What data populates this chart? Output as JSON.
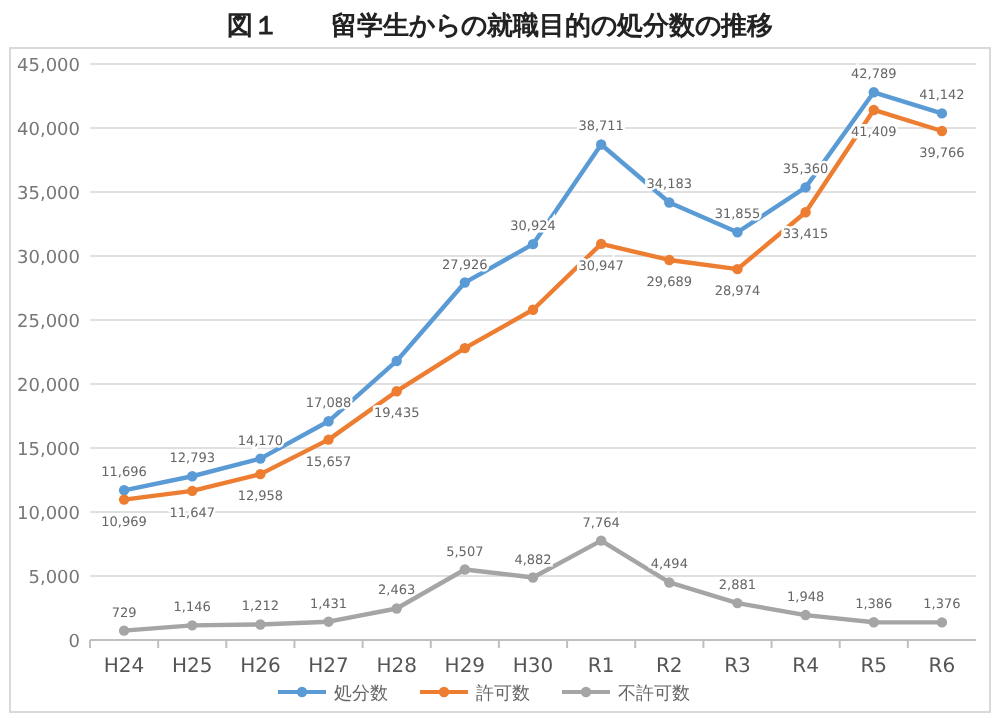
{
  "chart_data": {
    "type": "line",
    "title": "図１　　留学生からの就職目的の処分数の推移",
    "categories": [
      "H24",
      "H25",
      "H26",
      "H27",
      "H28",
      "H29",
      "H30",
      "R1",
      "R2",
      "R3",
      "R4",
      "R5",
      "R6"
    ],
    "series": [
      {
        "name": "処分数",
        "color": "#5b9bd5",
        "values": [
          11696,
          12793,
          14170,
          17088,
          21800,
          27926,
          30924,
          38711,
          34183,
          31855,
          35360,
          42789,
          41142
        ],
        "value_labels": [
          "11,696",
          "12,793",
          "14,170",
          "17,088",
          null,
          "27,926",
          "30,924",
          "38,711",
          "34,183",
          "31,855",
          "35,360",
          "42,789",
          "41,142"
        ]
      },
      {
        "name": "許可数",
        "color": "#ed7d31",
        "values": [
          10969,
          11647,
          12958,
          15657,
          19435,
          22800,
          25800,
          30947,
          29689,
          28974,
          33415,
          41409,
          39766
        ],
        "value_labels": [
          "10,969",
          "11,647",
          "12,958",
          "15,657",
          "19,435",
          null,
          null,
          "30,947",
          "29,689",
          "28,974",
          "33,415",
          "41,409",
          "39,766"
        ]
      },
      {
        "name": "不許可数",
        "color": "#a5a5a5",
        "values": [
          729,
          1146,
          1212,
          1431,
          2463,
          5507,
          4882,
          7764,
          4494,
          2881,
          1948,
          1386,
          1376
        ],
        "value_labels": [
          "729",
          "1,146",
          "1,212",
          "1,431",
          "2,463",
          "5,507",
          "4,882",
          "7,764",
          "4,494",
          "2,881",
          "1,948",
          "1,386",
          "1,376"
        ]
      }
    ],
    "ylim": [
      0,
      45000
    ],
    "yticks": [
      0,
      {
        "value": 5000,
        "label": "5,000"
      },
      {
        "value": 10000,
        "label": "10,000"
      },
      {
        "value": 15000,
        "label": "15,000"
      },
      {
        "value": 20000,
        "label": "20,000"
      },
      {
        "value": 25000,
        "label": "25,000"
      },
      {
        "value": 30000,
        "label": "30,000"
      },
      {
        "value": 35000,
        "label": "35,000"
      },
      {
        "value": 40000,
        "label": "40,000"
      },
      {
        "value": 45000,
        "label": "45,000"
      }
    ],
    "grid": "y",
    "legend": "bottom",
    "marker": "circle",
    "line_style": "solid"
  }
}
